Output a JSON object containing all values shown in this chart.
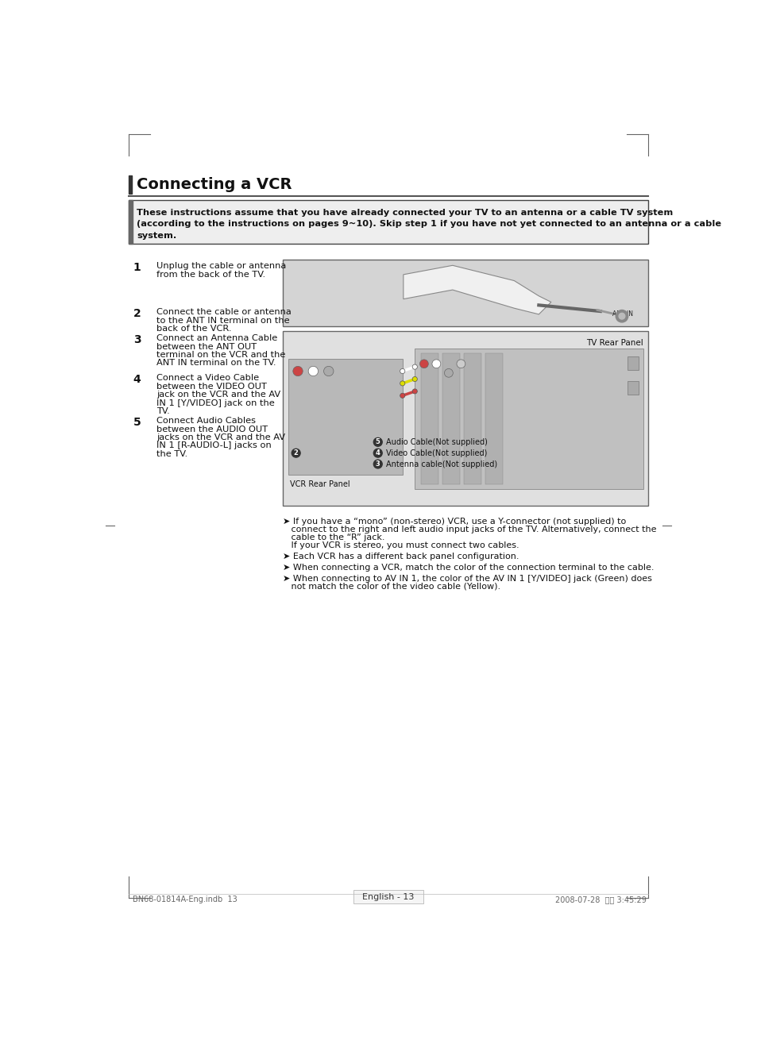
{
  "bg_color": "#ffffff",
  "title": "Connecting a VCR",
  "intro_lines": [
    "These instructions assume that you have already connected your TV to an antenna or a cable TV system",
    "(according to the instructions on pages 9~10). Skip step 1 if you have not yet connected to an antenna or a cable",
    "system."
  ],
  "steps": [
    {
      "num": "1",
      "text": "Unplug the cable or antenna\nfrom the back of the TV."
    },
    {
      "num": "2",
      "text": "Connect the cable or antenna\nto the ANT IN terminal on the\nback of the VCR."
    },
    {
      "num": "3",
      "text": "Connect an Antenna Cable\nbetween the ANT OUT\nterminal on the VCR and the\nANT IN terminal on the TV."
    },
    {
      "num": "4",
      "text": "Connect a Video Cable\nbetween the VIDEO OUT\njack on the VCR and the AV\nIN 1 [Y/VIDEO] jack on the\nTV."
    },
    {
      "num": "5",
      "text": "Connect Audio Cables\nbetween the AUDIO OUT\njacks on the VCR and the AV\nIN 1 [R-AUDIO-L] jacks on\nthe TV."
    }
  ],
  "notes": [
    [
      "➤ If you have a “mono” (non-stereo) VCR, use a Y-connector (not supplied) to",
      "   connect to the right and left audio input jacks of the TV. Alternatively, connect the",
      "   cable to the “R” jack.",
      "   If your VCR is stereo, you must connect two cables."
    ],
    [
      "➤ Each VCR has a different back panel configuration."
    ],
    [
      "➤ When connecting a VCR, match the color of the connection terminal to the cable."
    ],
    [
      "➤ When connecting to AV IN 1, the color of the AV IN 1 [Y/VIDEO] jack (Green) does",
      "   not match the color of the video cable (Yellow)."
    ]
  ],
  "footer_left": "BN68-01814A-Eng.indb  13",
  "footer_right": "2008-07-28  오후 3:45:29",
  "footer_center": "English - 13",
  "diagram_tv_label": "TV Rear Panel",
  "diagram_vcr_label": "VCR Rear Panel",
  "cable_labels": [
    {
      "num": 5,
      "text": "Audio Cable(Not supplied)"
    },
    {
      "num": 4,
      "text": "Video Cable(Not supplied)"
    },
    {
      "num": 3,
      "text": "Antenna cable(Not supplied)"
    }
  ]
}
